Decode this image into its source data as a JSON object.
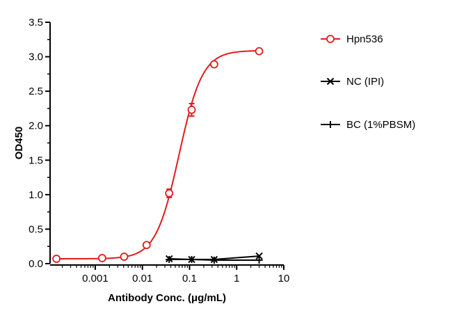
{
  "chart_data": {
    "type": "scatter",
    "x_scale": "log",
    "xlim": [
      0.00011,
      10
    ],
    "ylim": [
      0,
      3.5
    ],
    "xlabel": "Antibody Conc. (μg/mL)",
    "ylabel": "OD450",
    "x_ticks": [
      {
        "value": 0.001,
        "label": "0.001"
      },
      {
        "value": 0.01,
        "label": "0.01"
      },
      {
        "value": 0.1,
        "label": "0.1"
      },
      {
        "value": 1,
        "label": "1"
      },
      {
        "value": 10,
        "label": "10"
      }
    ],
    "y_ticks": [
      {
        "value": 0,
        "label": "0.0"
      },
      {
        "value": 0.5,
        "label": "0.5"
      },
      {
        "value": 1.0,
        "label": "1.0"
      },
      {
        "value": 1.5,
        "label": "1.5"
      },
      {
        "value": 2.0,
        "label": "2.0"
      },
      {
        "value": 2.5,
        "label": "2.5"
      },
      {
        "value": 3.0,
        "label": "3.0"
      },
      {
        "value": 3.5,
        "label": "3.5"
      }
    ],
    "legend_position": "right",
    "grid": false,
    "series": [
      {
        "name": "Hpn536",
        "color": "#e31a1c",
        "marker": "open-circle",
        "fit": "sigmoidal 4PL",
        "x": [
          0.00015,
          0.0014,
          0.0041,
          0.0123,
          0.037,
          0.111,
          0.333,
          3.0
        ],
        "y": [
          0.07,
          0.08,
          0.1,
          0.27,
          1.02,
          2.23,
          2.89,
          3.08
        ],
        "error": [
          0.01,
          0.01,
          0.01,
          0.02,
          0.06,
          0.09,
          0.02,
          0.02
        ]
      },
      {
        "name": "NC (IPI)",
        "color": "#000000",
        "marker": "x",
        "x": [
          0.037,
          0.111,
          0.333,
          3.0
        ],
        "y": [
          0.07,
          0.06,
          0.06,
          0.11
        ]
      },
      {
        "name": "BC (1%PBSM)",
        "color": "#000000",
        "marker": "plus",
        "x": [
          0.037,
          0.111,
          0.333,
          3.0
        ],
        "y": [
          0.06,
          0.06,
          0.05,
          0.05
        ]
      }
    ]
  }
}
